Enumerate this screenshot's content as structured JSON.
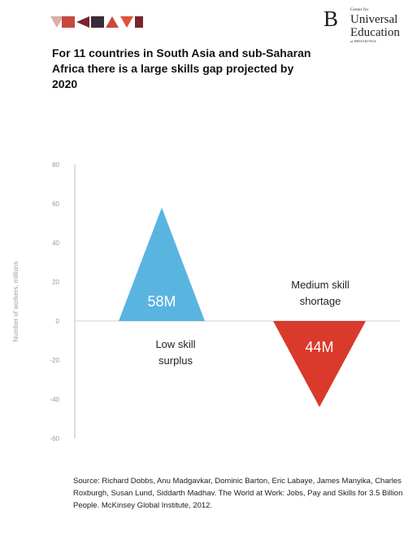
{
  "header": {
    "brand_b": "B",
    "brand_line1": "Center for",
    "brand_line2": "Universal",
    "brand_line3": "Education",
    "brand_line4": "at BROOKINGS"
  },
  "title": "For 11 countries in South Asia and sub-Saharan Africa there is a large skills gap projected by 2020",
  "chart_data": {
    "type": "area",
    "title": "For 11 countries in South Asia and sub-Saharan Africa there is a large skills gap projected by 2020",
    "ylabel": "Number of workers, millions",
    "ylim": [
      -60,
      80
    ],
    "yticks": [
      "80",
      "60",
      "40",
      "20",
      "0",
      "-20",
      "-40",
      "-60"
    ],
    "grid": false,
    "series": [
      {
        "name": "Low skill surplus",
        "value": 58,
        "value_label": "58M",
        "label_lines": [
          "Low skill",
          "surplus"
        ],
        "color": "#5ab4e0"
      },
      {
        "name": "Medium skill shortage",
        "value": -44,
        "value_label": "44M",
        "label_lines": [
          "Medium  skill",
          "shortage"
        ],
        "color": "#d93a2b"
      }
    ]
  },
  "source": "Source: Richard Dobbs, Anu Madgavkar, Dominic Barton, Eric Labaye, James Manyika, Charles Roxburgh, Susan Lund, Siddarth Madhav. The World at Work: Jobs, Pay and Skills for 3.5 Billion People. McKinsey Global Institute, 2012.",
  "colors": {
    "logo": [
      "#d8b0a6",
      "#c64a3c",
      "#7a2430",
      "#3a2a3a",
      "#e0523a"
    ]
  }
}
